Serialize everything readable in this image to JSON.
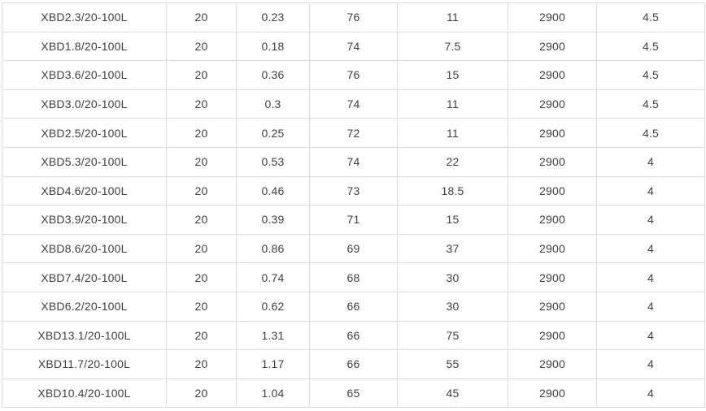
{
  "page": {
    "background": "#ffffff"
  },
  "colors": {
    "border": "#dcdcdc",
    "text": "#404040",
    "row_background": "#ffffff"
  },
  "chart_data": {
    "type": "table",
    "columns_header_visible": false,
    "rows": [
      [
        "XBD2.3/20-100L",
        "20",
        "0.23",
        "76",
        "11",
        "2900",
        "4.5"
      ],
      [
        "XBD1.8/20-100L",
        "20",
        "0.18",
        "74",
        "7.5",
        "2900",
        "4.5"
      ],
      [
        "XBD3.6/20-100L",
        "20",
        "0.36",
        "76",
        "15",
        "2900",
        "4.5"
      ],
      [
        "XBD3.0/20-100L",
        "20",
        "0.3",
        "74",
        "11",
        "2900",
        "4.5"
      ],
      [
        "XBD2.5/20-100L",
        "20",
        "0.25",
        "72",
        "11",
        "2900",
        "4.5"
      ],
      [
        "XBD5.3/20-100L",
        "20",
        "0.53",
        "74",
        "22",
        "2900",
        "4"
      ],
      [
        "XBD4.6/20-100L",
        "20",
        "0.46",
        "73",
        "18.5",
        "2900",
        "4"
      ],
      [
        "XBD3.9/20-100L",
        "20",
        "0.39",
        "71",
        "15",
        "2900",
        "4"
      ],
      [
        "XBD8.6/20-100L",
        "20",
        "0.86",
        "69",
        "37",
        "2900",
        "4"
      ],
      [
        "XBD7.4/20-100L",
        "20",
        "0.74",
        "68",
        "30",
        "2900",
        "4"
      ],
      [
        "XBD6.2/20-100L",
        "20",
        "0.62",
        "66",
        "30",
        "2900",
        "4"
      ],
      [
        "XBD13.1/20-100L",
        "20",
        "1.31",
        "66",
        "75",
        "2900",
        "4"
      ],
      [
        "XBD11.7/20-100L",
        "20",
        "1.17",
        "66",
        "55",
        "2900",
        "4"
      ],
      [
        "XBD10.4/20-100L",
        "20",
        "1.04",
        "65",
        "45",
        "2900",
        "4"
      ]
    ]
  }
}
